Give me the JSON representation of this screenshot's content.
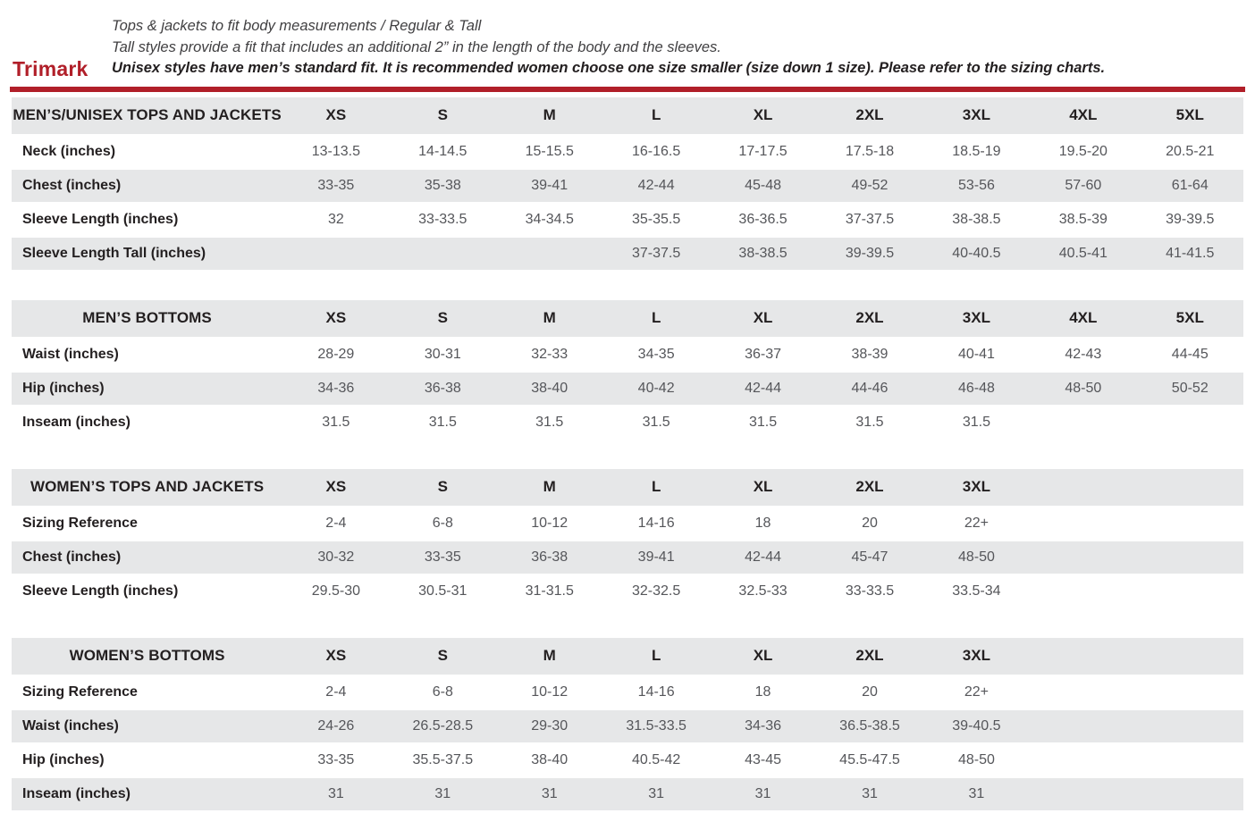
{
  "header": {
    "brand": "Trimark",
    "line1": "Tops & jackets to fit body measurements / Regular & Tall",
    "line2": "Tall styles provide a fit that includes an additional 2” in the length of the body and the sleeves.",
    "line3": "Unisex styles have men’s standard fit. It is recommended women choose one size smaller (size down 1 size).  Please refer to the sizing charts."
  },
  "colors": {
    "accent_red": "#b11f29",
    "row_gray": "#e6e7e8",
    "label_dark": "#231f20",
    "value_gray": "#55565a"
  },
  "tables": [
    {
      "title": "MEN’S/UNISEX TOPS AND JACKETS",
      "sizes": [
        "XS",
        "S",
        "M",
        "L",
        "XL",
        "2XL",
        "3XL",
        "4XL",
        "5XL"
      ],
      "rows": [
        {
          "label": "Neck (inches)",
          "values": [
            "13-13.5",
            "14-14.5",
            "15-15.5",
            "16-16.5",
            "17-17.5",
            "17.5-18",
            "18.5-19",
            "19.5-20",
            "20.5-21"
          ]
        },
        {
          "label": "Chest (inches)",
          "values": [
            "33-35",
            "35-38",
            "39-41",
            "42-44",
            "45-48",
            "49-52",
            "53-56",
            "57-60",
            "61-64"
          ]
        },
        {
          "label": "Sleeve Length (inches)",
          "values": [
            "32",
            "33-33.5",
            "34-34.5",
            "35-35.5",
            "36-36.5",
            "37-37.5",
            "38-38.5",
            "38.5-39",
            "39-39.5"
          ]
        },
        {
          "label": "Sleeve Length Tall (inches)",
          "values": [
            "",
            "",
            "",
            "37-37.5",
            "38-38.5",
            "39-39.5",
            "40-40.5",
            "40.5-41",
            "41-41.5"
          ]
        }
      ]
    },
    {
      "title": "MEN’S BOTTOMS",
      "sizes": [
        "XS",
        "S",
        "M",
        "L",
        "XL",
        "2XL",
        "3XL",
        "4XL",
        "5XL"
      ],
      "rows": [
        {
          "label": "Waist (inches)",
          "values": [
            "28-29",
            "30-31",
            "32-33",
            "34-35",
            "36-37",
            "38-39",
            "40-41",
            "42-43",
            "44-45"
          ]
        },
        {
          "label": "Hip (inches)",
          "values": [
            "34-36",
            "36-38",
            "38-40",
            "40-42",
            "42-44",
            "44-46",
            "46-48",
            "48-50",
            "50-52"
          ]
        },
        {
          "label": "Inseam (inches)",
          "values": [
            "31.5",
            "31.5",
            "31.5",
            "31.5",
            "31.5",
            "31.5",
            "31.5",
            "",
            ""
          ]
        }
      ]
    },
    {
      "title": "WOMEN’S TOPS AND JACKETS",
      "sizes": [
        "XS",
        "S",
        "M",
        "L",
        "XL",
        "2XL",
        "3XL",
        "",
        ""
      ],
      "rows": [
        {
          "label": "Sizing Reference",
          "values": [
            "2-4",
            "6-8",
            "10-12",
            "14-16",
            "18",
            "20",
            "22+",
            "",
            ""
          ]
        },
        {
          "label": "Chest (inches)",
          "values": [
            "30-32",
            "33-35",
            "36-38",
            "39-41",
            "42-44",
            "45-47",
            "48-50",
            "",
            ""
          ]
        },
        {
          "label": "Sleeve Length (inches)",
          "values": [
            "29.5-30",
            "30.5-31",
            "31-31.5",
            "32-32.5",
            "32.5-33",
            "33-33.5",
            "33.5-34",
            "",
            ""
          ]
        }
      ]
    },
    {
      "title": "WOMEN’S BOTTOMS",
      "sizes": [
        "XS",
        "S",
        "M",
        "L",
        "XL",
        "2XL",
        "3XL",
        "",
        ""
      ],
      "rows": [
        {
          "label": "Sizing Reference",
          "values": [
            "2-4",
            "6-8",
            "10-12",
            "14-16",
            "18",
            "20",
            "22+",
            "",
            ""
          ]
        },
        {
          "label": "Waist (inches)",
          "values": [
            "24-26",
            "26.5-28.5",
            "29-30",
            "31.5-33.5",
            "34-36",
            "36.5-38.5",
            "39-40.5",
            "",
            ""
          ]
        },
        {
          "label": "Hip (inches)",
          "values": [
            "33-35",
            "35.5-37.5",
            "38-40",
            "40.5-42",
            "43-45",
            "45.5-47.5",
            "48-50",
            "",
            ""
          ]
        },
        {
          "label": "Inseam (inches)",
          "values": [
            "31",
            "31",
            "31",
            "31",
            "31",
            "31",
            "31",
            "",
            ""
          ]
        }
      ]
    }
  ]
}
